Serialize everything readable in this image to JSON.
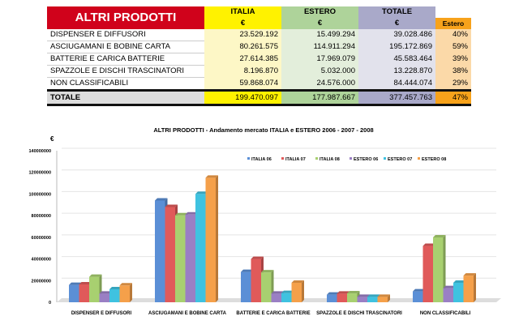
{
  "table": {
    "title": "ALTRI PRODOTTI",
    "headers": [
      "ITALIA",
      "ESTERO",
      "TOTALE"
    ],
    "currency": "€",
    "pct_header": "Estero",
    "rows": [
      {
        "label": "DISPENSER E DIFFUSORI",
        "italia": "23.529.192",
        "estero": "15.499.294",
        "totale": "39.028.486",
        "pct": "40%"
      },
      {
        "label": "ASCIUGAMANI E BOBINE CARTA",
        "italia": "80.261.575",
        "estero": "114.911.294",
        "totale": "195.172.869",
        "pct": "59%"
      },
      {
        "label": "BATTERIE E CARICA BATTERIE",
        "italia": "27.614.385",
        "estero": "17.969.079",
        "totale": "45.583.464",
        "pct": "39%"
      },
      {
        "label": "SPAZZOLE E DISCHI TRASCINATORI",
        "italia": "8.196.870",
        "estero": "5.032.000",
        "totale": "13.228.870",
        "pct": "38%"
      },
      {
        "label": "NON CLASSIFICABILI",
        "italia": "59.868.074",
        "estero": "24.576.000",
        "totale": "84.444.074",
        "pct": "29%"
      }
    ],
    "total": {
      "label": "TOTALE",
      "italia": "199.470.097",
      "estero": "177.987.667",
      "totale": "377.457.763",
      "pct": "47%"
    }
  },
  "chart_data": {
    "type": "bar",
    "title": "ALTRI PRODOTTI - Andamento mercato ITALIA e ESTERO 2006 - 2007 - 2008",
    "ylabel": "€",
    "ylim": [
      0,
      140000000
    ],
    "yticks": [
      "0",
      "20000000",
      "40000000",
      "60000000",
      "80000000",
      "100000000",
      "120000000",
      "140000000"
    ],
    "legend_position": "top-right",
    "categories": [
      "DISPENSER E DIFFUSORI",
      "ASCIUGAMANI E BOBINE CARTA",
      "BATTERIE E CARICA BATTERIE",
      "SPAZZOLE E DISCHI TRASCINATORI",
      "NON CLASSIFICABILI"
    ],
    "series": [
      {
        "name": "ITALIA 06",
        "color": "#5b8fd6",
        "values": [
          16000000,
          94000000,
          28000000,
          7000000,
          10000000
        ]
      },
      {
        "name": "ITALIA 07",
        "color": "#e05a5a",
        "values": [
          16500000,
          88000000,
          40000000,
          8000000,
          52000000
        ]
      },
      {
        "name": "ITALIA 08",
        "color": "#a8d070",
        "values": [
          23500000,
          80300000,
          27600000,
          8200000,
          59900000
        ]
      },
      {
        "name": "ESTERO 06",
        "color": "#9a7fc4",
        "values": [
          8000000,
          81000000,
          8000000,
          5000000,
          13000000
        ]
      },
      {
        "name": "ESTERO 07",
        "color": "#3fc2e0",
        "values": [
          12000000,
          100000000,
          8500000,
          5000000,
          18000000
        ]
      },
      {
        "name": "ESTERO 08",
        "color": "#f5a04a",
        "values": [
          15500000,
          115000000,
          18000000,
          5000000,
          24600000
        ]
      }
    ]
  }
}
